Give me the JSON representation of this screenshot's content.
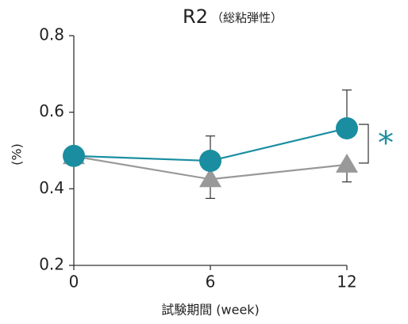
{
  "chart_data": {
    "type": "line",
    "title": "R2",
    "subtitle": "（総粘弾性）",
    "xlabel": "試験期間 (week)",
    "ylabel": "(%)",
    "x": [
      0,
      6,
      12
    ],
    "xlim": [
      0,
      12
    ],
    "xticks": [
      0,
      6,
      12
    ],
    "ylim": [
      0.2,
      0.8
    ],
    "yticks": [
      0.2,
      0.4,
      0.6,
      0.8
    ],
    "series": [
      {
        "name": null,
        "color": "#999999",
        "marker": "triangle",
        "values": [
          0.485,
          0.425,
          0.463
        ],
        "errors": [
          null,
          0.05,
          0.045
        ],
        "error_direction": "down"
      },
      {
        "name": null,
        "color": "#1a8ea0",
        "marker": "circle",
        "values": [
          0.486,
          0.473,
          0.558
        ],
        "errors": [
          null,
          0.065,
          0.1
        ],
        "error_direction": "up"
      }
    ],
    "annotation": "*"
  }
}
